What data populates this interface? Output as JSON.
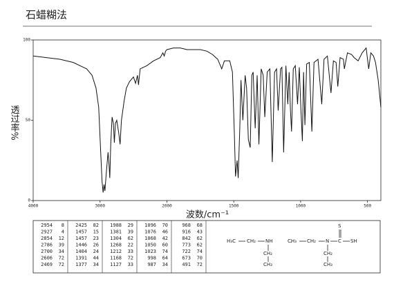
{
  "chart_data": {
    "type": "line",
    "title": "石蜡糊法",
    "xlabel": "波数/cm⁻¹",
    "ylabel": "透过率%",
    "xlim": [
      4000,
      400
    ],
    "ylim": [
      0,
      100
    ],
    "xticks": [
      4000,
      3000,
      2000,
      1500,
      1000,
      500
    ],
    "yticks": [
      0,
      50,
      100
    ],
    "x": [
      4000,
      3800,
      3600,
      3400,
      3300,
      3200,
      3120,
      3060,
      3020,
      2990,
      2970,
      2954,
      2940,
      2927,
      2905,
      2880,
      2865,
      2854,
      2840,
      2820,
      2800,
      2786,
      2770,
      2750,
      2720,
      2700,
      2680,
      2640,
      2606,
      2560,
      2500,
      2469,
      2440,
      2425,
      2400,
      2300,
      2200,
      2100,
      2060,
      2040,
      2020,
      2000,
      1950,
      1900,
      1850,
      1800,
      1750,
      1700,
      1660,
      1620,
      1590,
      1570,
      1530,
      1510,
      1495,
      1487,
      1475,
      1467,
      1455,
      1446,
      1432,
      1415,
      1404,
      1391,
      1377,
      1365,
      1355,
      1340,
      1325,
      1312,
      1295,
      1280,
      1268,
      1250,
      1230,
      1212,
      1195,
      1180,
      1168,
      1150,
      1140,
      1127,
      1110,
      1096,
      1086,
      1076,
      1068,
      1055,
      1040,
      1023,
      1010,
      998,
      987,
      978,
      968,
      955,
      935,
      916,
      900,
      870,
      842,
      825,
      800,
      773,
      755,
      735,
      722,
      705,
      680,
      673,
      650,
      620,
      600,
      570,
      540,
      510,
      491,
      475,
      455,
      440,
      420,
      400
    ],
    "series": [
      {
        "color": "#111111",
        "values": [
          90,
          89,
          88,
          86,
          84,
          82,
          78,
          70,
          58,
          30,
          12,
          5,
          10,
          6,
          18,
          30,
          22,
          14,
          35,
          52,
          48,
          36,
          48,
          50,
          42,
          35,
          50,
          62,
          70,
          74,
          77,
          73,
          78,
          72,
          82,
          84,
          87,
          89,
          92,
          90,
          93,
          94,
          95,
          95,
          94,
          94,
          94,
          93,
          91,
          88,
          82,
          87,
          87,
          80,
          40,
          15,
          25,
          14,
          45,
          75,
          50,
          78,
          70,
          38,
          33,
          78,
          80,
          45,
          78,
          35,
          82,
          78,
          52,
          80,
          82,
          24,
          80,
          82,
          56,
          82,
          83,
          30,
          84,
          60,
          80,
          56,
          43,
          82,
          84,
          60,
          83,
          57,
          37,
          80,
          47,
          85,
          86,
          43,
          86,
          88,
          60,
          88,
          90,
          67,
          87,
          86,
          71,
          89,
          88,
          82,
          92,
          91,
          89,
          87,
          92,
          95,
          82,
          92,
          90,
          86,
          75,
          58
        ]
      }
    ],
    "peak_table": [
      [
        [
          "2954",
          "8"
        ],
        [
          "2927",
          "4"
        ],
        [
          "2854",
          "12"
        ],
        [
          "2786",
          "39"
        ],
        [
          "2700",
          "34"
        ],
        [
          "2606",
          "72"
        ],
        [
          "2469",
          "72"
        ]
      ],
      [
        [
          "2425",
          "82"
        ],
        [
          "1457",
          "15"
        ],
        [
          "1457",
          "23"
        ],
        [
          "1446",
          "26"
        ],
        [
          "1404",
          "24"
        ],
        [
          "1391",
          "44"
        ],
        [
          "1377",
          "34"
        ]
      ],
      [
        [
          "1988",
          "29"
        ],
        [
          "1381",
          "39"
        ],
        [
          "1304",
          "62"
        ],
        [
          "1268",
          "22"
        ],
        [
          "1212",
          "33"
        ],
        [
          "1168",
          "72"
        ],
        [
          "1127",
          "33"
        ]
      ],
      [
        [
          "1096",
          "70"
        ],
        [
          "1076",
          "46"
        ],
        [
          "1068",
          "42"
        ],
        [
          "1050",
          "60"
        ],
        [
          "1023",
          "74"
        ],
        [
          "998",
          "64"
        ],
        [
          "987",
          "34"
        ]
      ],
      [
        [
          "968",
          "68"
        ],
        [
          "916",
          "43"
        ],
        [
          "842",
          "62"
        ],
        [
          "773",
          "62"
        ],
        [
          "722",
          "74"
        ],
        [
          "673",
          "70"
        ],
        [
          "491",
          "72"
        ]
      ]
    ]
  },
  "structure": {
    "amine": [
      "H₃C",
      "CH₂",
      "NH",
      "CH₂",
      "CH₃"
    ],
    "separator": "·",
    "acid": [
      "CH₃",
      "CH₂",
      "N",
      "C",
      "SH",
      "S",
      "CH₂",
      "CH₃"
    ]
  }
}
